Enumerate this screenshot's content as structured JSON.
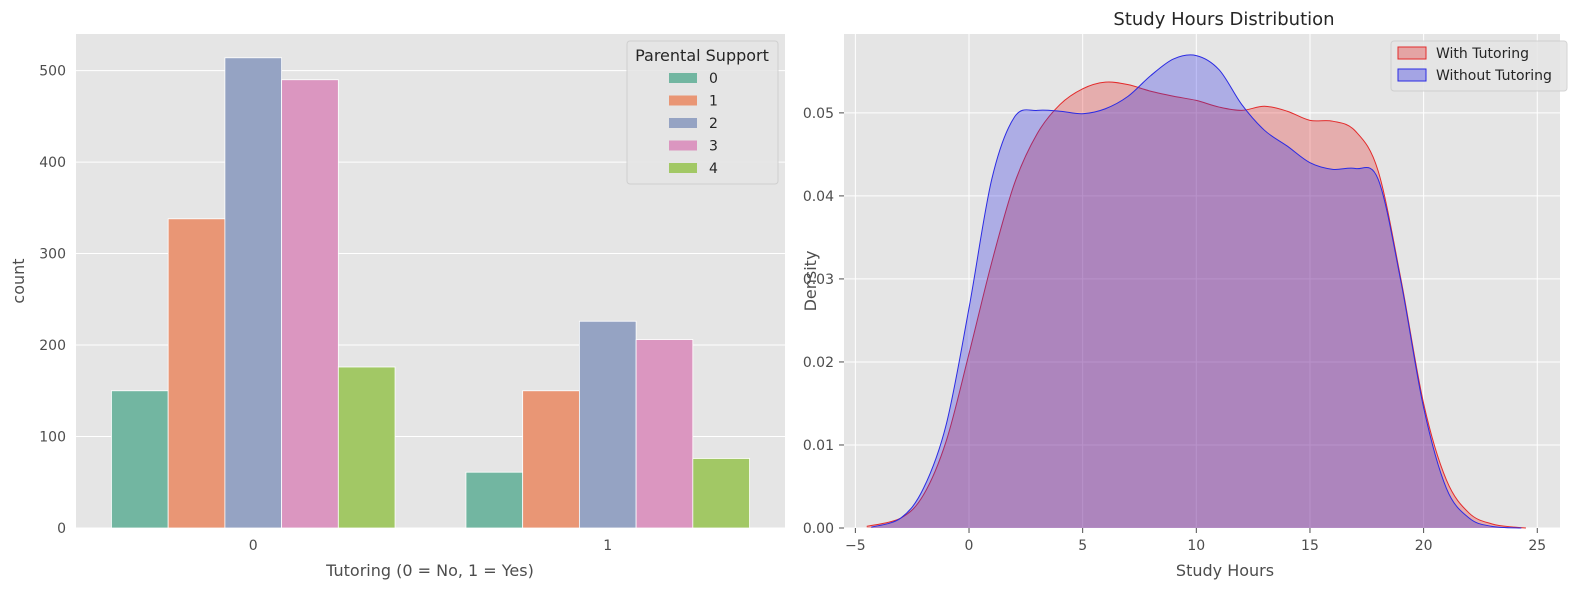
{
  "chart_data": [
    {
      "type": "bar",
      "title": "",
      "xlabel": "Tutoring (0 = No, 1 = Yes)",
      "ylabel": "count",
      "categories": [
        "0",
        "1"
      ],
      "ylim": [
        0,
        540
      ],
      "yticks": [
        0,
        100,
        200,
        300,
        400,
        500
      ],
      "grid": true,
      "legend": {
        "title": "Parental Support",
        "placement": "top-right"
      },
      "series": [
        {
          "name": "0",
          "color": "#72b6a1",
          "values": [
            150,
            61
          ]
        },
        {
          "name": "1",
          "color": "#e99675",
          "values": [
            338,
            150
          ]
        },
        {
          "name": "2",
          "color": "#95a3c3",
          "values": [
            514,
            226
          ]
        },
        {
          "name": "3",
          "color": "#db96c0",
          "values": [
            490,
            206
          ]
        },
        {
          "name": "4",
          "color": "#a2c865",
          "values": [
            176,
            76
          ]
        }
      ]
    },
    {
      "type": "area",
      "title": "Study Hours Distribution",
      "xlabel": "Study Hours",
      "ylabel": "Density",
      "xlim": [
        -5.5,
        26
      ],
      "ylim": [
        0,
        0.0595
      ],
      "xticks": [
        -5,
        0,
        5,
        10,
        15,
        20,
        25
      ],
      "yticks": [
        0.0,
        0.01,
        0.02,
        0.03,
        0.04,
        0.05
      ],
      "ytick_labels": [
        "0.00",
        "0.01",
        "0.02",
        "0.03",
        "0.04",
        "0.05"
      ],
      "xtick_labels": [
        "−5",
        "0",
        "5",
        "10",
        "15",
        "20",
        "25"
      ],
      "grid": true,
      "legend": {
        "placement": "top-right"
      },
      "series": [
        {
          "name": "With Tutoring",
          "color": "#e32b2b",
          "x": [
            -4.5,
            -3,
            -2,
            -1,
            0,
            1,
            2,
            3,
            4,
            5,
            6,
            7,
            8,
            9,
            10,
            11,
            12,
            13,
            14,
            15,
            16,
            17,
            18,
            19,
            20,
            21,
            22,
            23,
            24,
            24.5
          ],
          "y": [
            0.0002,
            0.0012,
            0.004,
            0.0105,
            0.021,
            0.032,
            0.0415,
            0.0475,
            0.051,
            0.0529,
            0.0537,
            0.0534,
            0.0526,
            0.052,
            0.0515,
            0.0507,
            0.0503,
            0.0508,
            0.0502,
            0.0491,
            0.049,
            0.0478,
            0.043,
            0.03,
            0.015,
            0.0058,
            0.0018,
            0.0005,
            0.0001,
            0.0
          ]
        },
        {
          "name": "Without Tutoring",
          "color": "#2b2be3",
          "x": [
            -4.3,
            -3,
            -2,
            -1,
            0,
            1,
            2,
            3,
            4,
            5,
            6,
            7,
            8,
            9,
            10,
            11,
            12,
            13,
            14,
            15,
            16,
            17,
            18,
            19,
            20,
            21,
            22,
            23,
            24.3
          ],
          "y": [
            0.0001,
            0.0012,
            0.0048,
            0.0125,
            0.0265,
            0.042,
            0.0495,
            0.0503,
            0.0502,
            0.0499,
            0.0505,
            0.052,
            0.0545,
            0.0565,
            0.0569,
            0.0552,
            0.051,
            0.0479,
            0.046,
            0.044,
            0.0432,
            0.0433,
            0.042,
            0.0297,
            0.0145,
            0.0048,
            0.0012,
            0.0002,
            0.0
          ]
        }
      ]
    }
  ]
}
